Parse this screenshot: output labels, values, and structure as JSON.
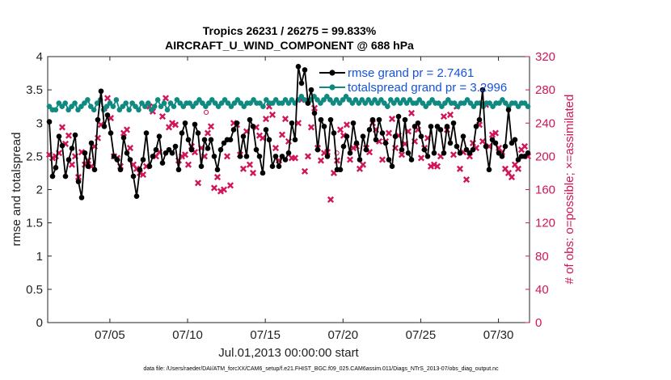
{
  "chart_data": {
    "type": "line",
    "title": "Tropics 26231 / 26275 = 99.833%",
    "subtitle": "AIRCRAFT_U_WIND_COMPONENT @ 688 hPa",
    "xlabel": "Jul.01,2013 00:00:00 start",
    "ylabel": "rmse and totalspread",
    "ylabel_right": "# of obs: o=possible; ×=assimilated",
    "xlim": [
      1,
      32
    ],
    "ylim": [
      0,
      4
    ],
    "ylim_right": [
      0,
      320
    ],
    "x_ticks": [
      5,
      10,
      15,
      20,
      25,
      30
    ],
    "x_tick_labels": [
      "07/05",
      "07/10",
      "07/15",
      "07/20",
      "07/25",
      "07/30"
    ],
    "y_ticks": [
      "0",
      "0.5",
      "1",
      "1.5",
      "2",
      "2.5",
      "3",
      "3.5",
      "4"
    ],
    "y_ticks_right": [
      "0",
      "40",
      "80",
      "120",
      "160",
      "200",
      "240",
      "280",
      "320"
    ],
    "legend": [
      "rmse grand pr = 2.7461",
      "totalspread grand pr = 3.2996"
    ],
    "legend_position": "top-right",
    "series": [
      {
        "name": "rmse",
        "color": "#000000",
        "values": [
          3.02,
          2.2,
          2.33,
          2.8,
          2.66,
          2.2,
          2.45,
          2.62,
          2.82,
          2.12,
          1.88,
          2.55,
          2.35,
          2.7,
          2.3,
          3.05,
          3.48,
          2.95,
          3.12,
          2.85,
          2.5,
          2.45,
          2.3,
          2.78,
          2.55,
          2.45,
          2.2,
          1.9,
          2.3,
          2.45,
          2.85,
          2.35,
          2.5,
          2.6,
          2.8,
          2.4,
          2.55,
          2.6,
          2.55,
          2.65,
          2.3,
          2.85,
          3.0,
          2.75,
          2.6,
          2.98,
          2.85,
          2.35,
          2.75,
          2.62,
          2.75,
          2.5,
          2.3,
          2.6,
          2.7,
          2.75,
          2.75,
          2.9,
          3.0,
          2.5,
          2.8,
          2.5,
          3.05,
          2.95,
          2.6,
          2.5,
          2.25,
          2.9,
          2.75,
          2.35,
          2.5,
          2.35,
          2.5,
          2.45,
          2.55,
          3.0,
          2.75,
          3.85,
          3.6,
          3.8,
          3.3,
          3.5,
          3.15,
          2.6,
          3.05,
          2.95,
          2.5,
          3.05,
          2.85,
          2.3,
          2.3,
          2.65,
          2.8,
          2.55,
          3.0,
          2.7,
          2.45,
          2.8,
          2.6,
          2.9,
          3.05,
          2.75,
          3.05,
          2.85,
          2.7,
          2.45,
          2.35,
          2.8,
          3.1,
          2.6,
          3.05,
          2.55,
          2.45,
          2.95,
          3.0,
          2.8,
          2.6,
          2.5,
          2.95,
          2.55,
          2.95,
          2.9,
          2.55,
          2.95,
          2.7,
          3.0,
          2.65,
          2.55,
          2.8,
          2.6,
          2.55,
          2.6,
          2.95,
          3.05,
          3.5,
          2.65,
          2.3,
          2.75,
          2.7,
          2.55,
          2.5,
          2.65,
          3.2,
          2.7,
          2.75,
          2.45,
          2.5,
          2.5,
          2.55
        ]
      },
      {
        "name": "totalspread",
        "color": "#0e8a80",
        "values": [
          3.25,
          3.2,
          3.2,
          3.3,
          3.25,
          3.3,
          3.2,
          3.25,
          3.3,
          3.2,
          3.25,
          3.3,
          3.35,
          3.25,
          3.2,
          3.3,
          3.35,
          3.2,
          3.25,
          3.3,
          3.25,
          3.35,
          3.2,
          3.25,
          3.3,
          3.2,
          3.3,
          3.25,
          3.2,
          3.3,
          3.25,
          3.3,
          3.2,
          3.25,
          3.35,
          3.25,
          3.3,
          3.2,
          3.3,
          3.25,
          3.35,
          3.3,
          3.25,
          3.3,
          3.3,
          3.25,
          3.3,
          3.35,
          3.3,
          3.25,
          3.3,
          3.35,
          3.3,
          3.25,
          3.3,
          3.35,
          3.3,
          3.25,
          3.3,
          3.35,
          3.3,
          3.25,
          3.3,
          3.3,
          3.35,
          3.3,
          3.3,
          3.25,
          3.35,
          3.3,
          3.3,
          3.35,
          3.3,
          3.3,
          3.35,
          3.3,
          3.35,
          3.3,
          3.35,
          3.4,
          3.35,
          3.3,
          3.35,
          3.4,
          3.35,
          3.3,
          3.35,
          3.4,
          3.35,
          3.3,
          3.35,
          3.3,
          3.35,
          3.4,
          3.35,
          3.3,
          3.35,
          3.3,
          3.35,
          3.3,
          3.35,
          3.3,
          3.35,
          3.3,
          3.35,
          3.3,
          3.25,
          3.35,
          3.3,
          3.35,
          3.3,
          3.35,
          3.3,
          3.35,
          3.3,
          3.3,
          3.35,
          3.3,
          3.25,
          3.3,
          3.35,
          3.3,
          3.3,
          3.25,
          3.3,
          3.35,
          3.3,
          3.3,
          3.25,
          3.3,
          3.3,
          3.35,
          3.3,
          3.25,
          3.3,
          3.3,
          3.25,
          3.3,
          3.3,
          3.25,
          3.3,
          3.3,
          3.35,
          3.3,
          3.25,
          3.3,
          3.3,
          3.25,
          3.3,
          3.3,
          3.25
        ]
      },
      {
        "name": "assimilated",
        "axis": "right",
        "marker": "x",
        "color": "#d1155a",
        "values": [
          202,
          198,
          200,
          204,
          235,
          215,
          225,
          190,
          200,
          175,
          205,
          190,
          195,
          188,
          212,
          222,
          238,
          258,
          270,
          246,
          200,
          198,
          188,
          228,
          232,
          210,
          190,
          185,
          180,
          178,
          188,
          260,
          254,
          200,
          205,
          248,
          270,
          235,
          240,
          238,
          195,
          200,
          202,
          190,
          212,
          205,
          168,
          210,
          200,
          228,
          236,
          162,
          175,
          158,
          160,
          200,
          165,
          240,
          238,
          202,
          185,
          230,
          190,
          180,
          235,
          225,
          222,
          245,
          260,
          250,
          210,
          195,
          226,
          245,
          218,
          198,
          198,
          240,
          268,
          182,
          200,
          235,
          258,
          210,
          195,
          204,
          205,
          148,
          180,
          195,
          232,
          225,
          238,
          196,
          210,
          212,
          185,
          190,
          210,
          205,
          240,
          232,
          218,
          196,
          218,
          228,
          245,
          210,
          225,
          202,
          215,
          230,
          252,
          218,
          232,
          198,
          210,
          222,
          188,
          190,
          188,
          200,
          248,
          232,
          250,
          202,
          260,
          185,
          205,
          172,
          200,
          216,
          210,
          238,
          218,
          262,
          212,
          226,
          228,
          210,
          205,
          185,
          180,
          175,
          190,
          185,
          208,
          212,
          200
        ]
      },
      {
        "name": "possible",
        "axis": "right",
        "marker": "o",
        "color": "#d1155a",
        "values": [
          [
            11.2,
            253
          ],
          [
            19.6,
            204
          ]
        ]
      }
    ]
  },
  "footnote": "data file: /Users/raeder/DAI/ATM_forcXX/CAM6_setup/f.e21.FHIST_BGC.f09_025.CAM6assim.011/Diags_NTrS_2013-07/obs_diag_output.nc",
  "colors": {
    "rmse": "#000000",
    "totalspread": "#0e8a80",
    "obs": "#d1155a",
    "legend_text": "#1452e0"
  }
}
